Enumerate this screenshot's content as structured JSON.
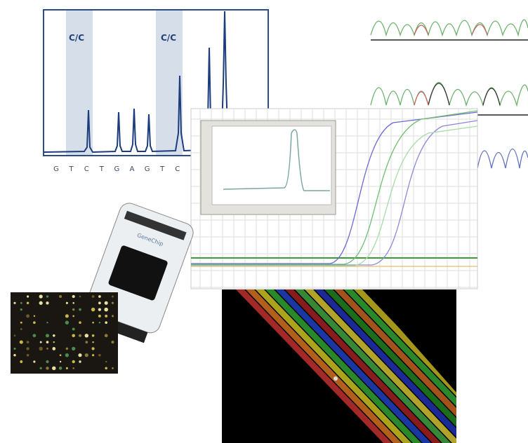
{
  "pyrogram": {
    "labels": [
      "C/C",
      "C/C"
    ],
    "bases": [
      "G",
      "T",
      "C",
      "T",
      "G",
      "A",
      "G",
      "T",
      "C"
    ]
  },
  "chip": {
    "brand": "GeneChip"
  }
}
